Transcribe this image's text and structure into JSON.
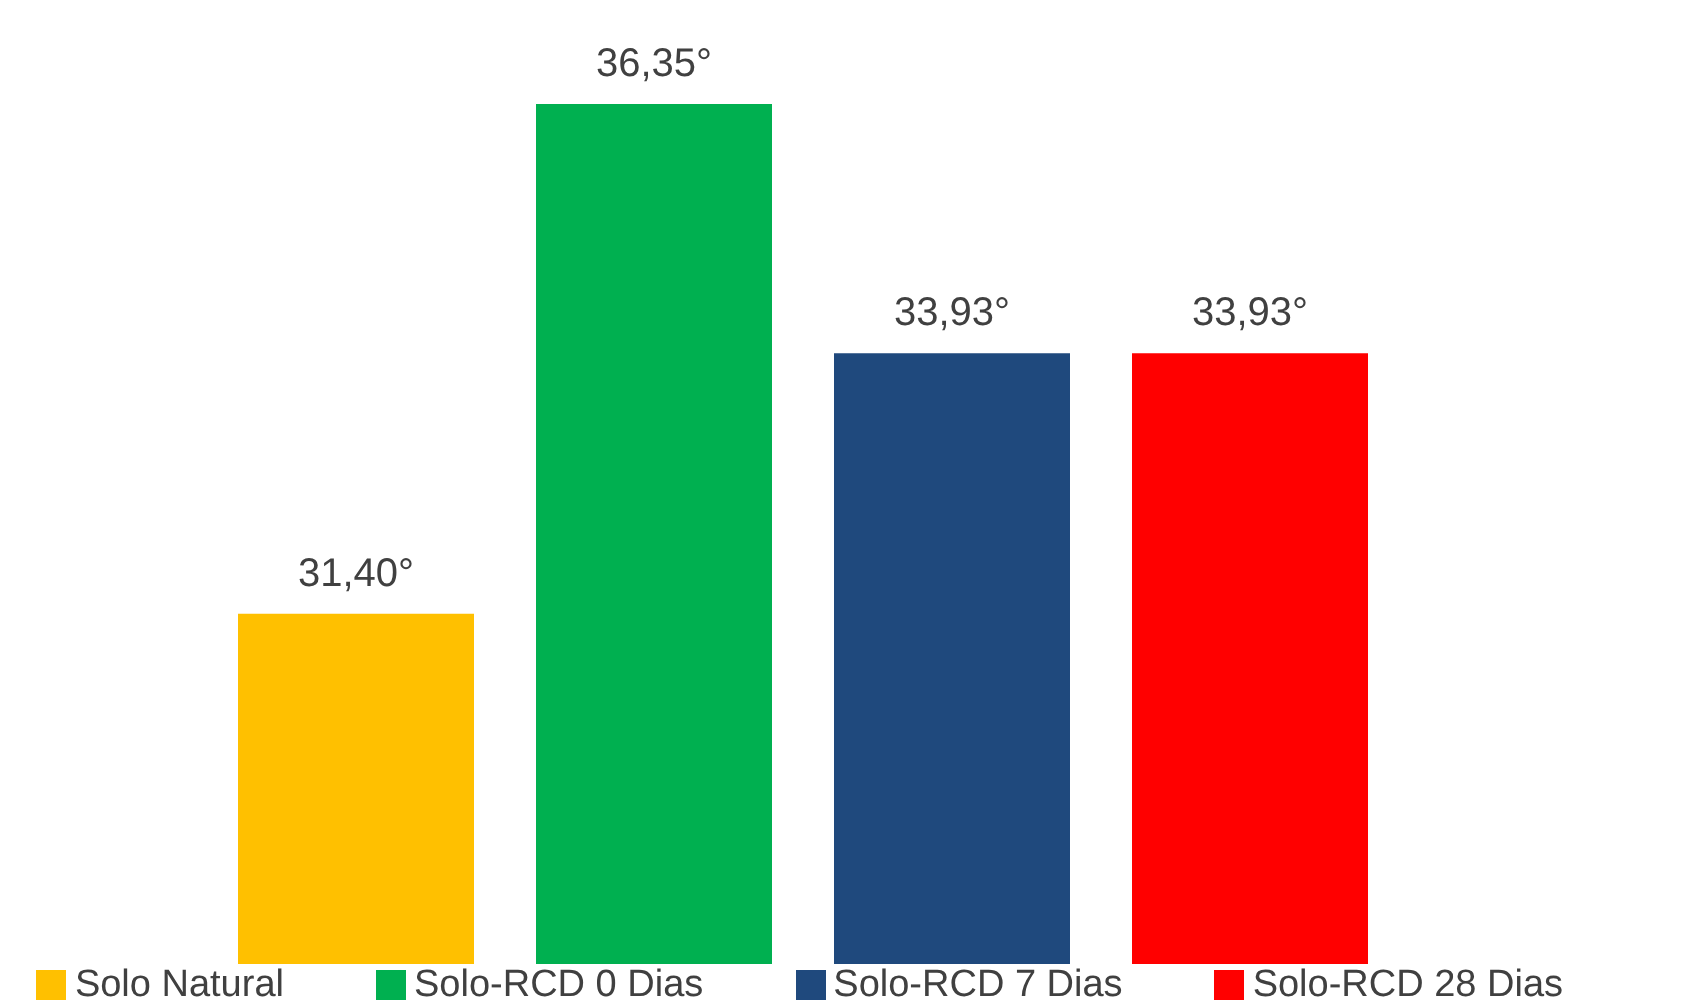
{
  "chart_data": {
    "type": "bar",
    "categories": [
      null
    ],
    "ylim": [
      28,
      36.35
    ],
    "legend": "bottom",
    "series": [
      {
        "name": "Solo Natural",
        "color": "#ffc000",
        "values": [
          31.4
        ],
        "value_labels": [
          "31,40°"
        ]
      },
      {
        "name": "Solo-RCD 0 Dias",
        "color": "#00b050",
        "values": [
          36.35
        ],
        "value_labels": [
          "36,35°"
        ]
      },
      {
        "name": "Solo-RCD 7 Dias",
        "color": "#1f497d",
        "values": [
          33.93
        ],
        "value_labels": [
          "33,93°"
        ]
      },
      {
        "name": "Solo-RCD 28 Dias",
        "color": "#ff0000",
        "values": [
          33.93
        ],
        "value_labels": [
          "33,93°"
        ]
      }
    ]
  }
}
